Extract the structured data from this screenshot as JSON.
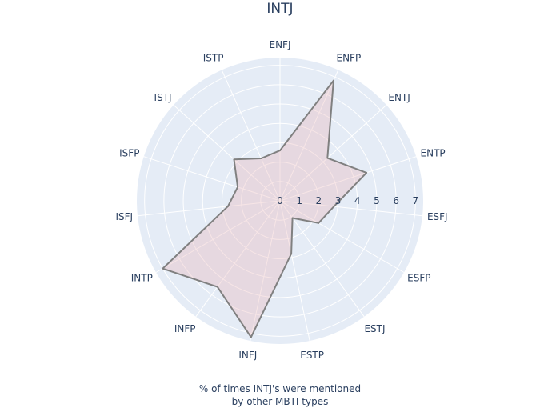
{
  "chart_data": {
    "type": "radar",
    "title": "INTJ",
    "caption": "% of times INTJ's were mentioned\nby other MBTI types",
    "categories": [
      "ENFJ",
      "ENFP",
      "ENTJ",
      "ENTP",
      "ESFJ",
      "ESFP",
      "ESTJ",
      "ESTP",
      "INFJ",
      "INFP",
      "INTP",
      "ISFJ",
      "ISFP",
      "ISTJ",
      "ISTP"
    ],
    "values": [
      2.6,
      6.8,
      3.3,
      4.7,
      2.8,
      2.3,
      1.1,
      2.8,
      7.2,
      5.5,
      7.0,
      2.7,
      2.3,
      3.2,
      2.4
    ],
    "radial_ticks": [
      "0",
      "1",
      "2",
      "3",
      "4",
      "5",
      "6",
      "7"
    ],
    "rlim": [
      0,
      7.4
    ],
    "colors": {
      "polar_bg": "#e5ecf6",
      "grid": "#ffffff",
      "fill": "#e8b4b8",
      "line": "#808080",
      "text": "#2a3f5f"
    }
  }
}
